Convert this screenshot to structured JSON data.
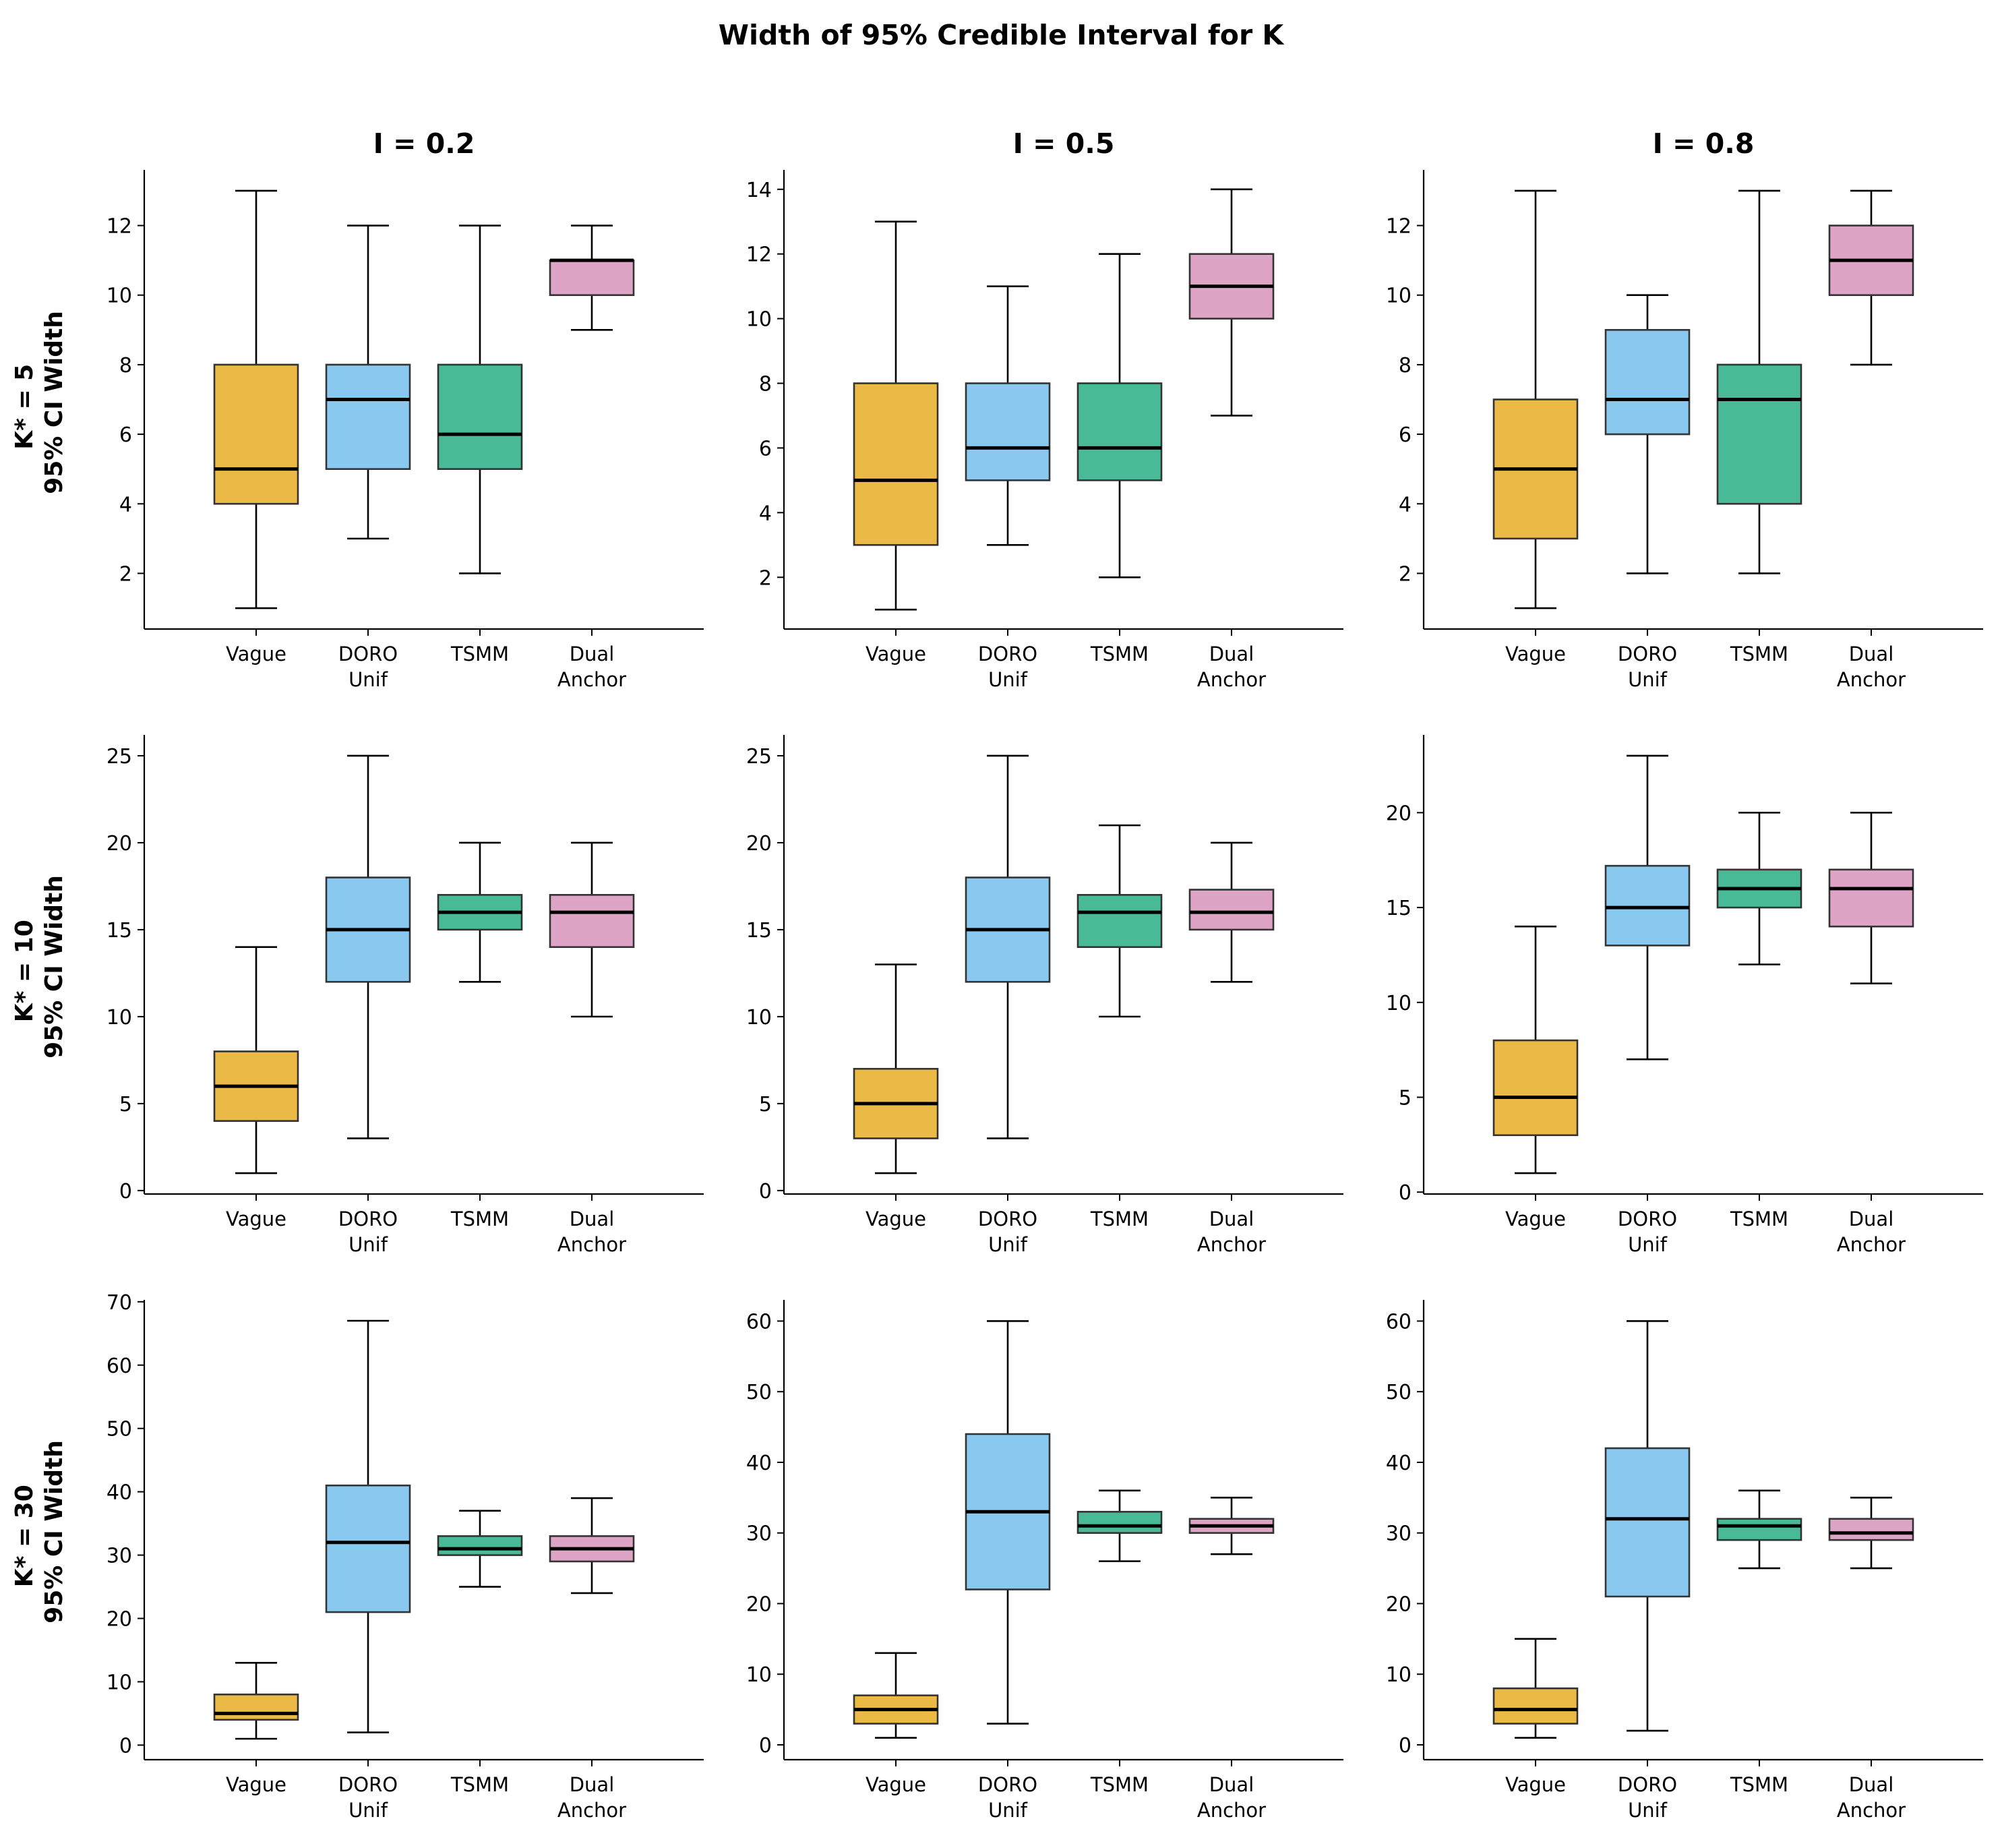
{
  "chart_data": {
    "type": "box",
    "title": "Width of 95% Credible Interval for K",
    "column_titles": [
      "I = 0.2",
      "I = 0.5",
      "I = 0.8"
    ],
    "row_labels": [
      {
        "line1": "K* = 5",
        "line2": "95% CI Width"
      },
      {
        "line1": "K* = 10",
        "line2": "95% CI Width"
      },
      {
        "line1": "K* = 30",
        "line2": "95% CI Width"
      }
    ],
    "categories": [
      {
        "line1": "Vague",
        "line2": ""
      },
      {
        "line1": "DORO",
        "line2": "Unif"
      },
      {
        "line1": "TSMM",
        "line2": ""
      },
      {
        "line1": "Dual",
        "line2": "Anchor"
      }
    ],
    "colors": [
      "#E6A817",
      "#6CBAEB",
      "#1BA97E",
      "#D48DB6"
    ],
    "panels": [
      [
        {
          "ylim": [
            0.4,
            13.6
          ],
          "yticks": [
            2,
            4,
            6,
            8,
            10,
            12
          ],
          "tick_labels": [
            "2",
            "4",
            "6",
            "8",
            "10",
            "12"
          ],
          "boxes": [
            {
              "whislo": 1,
              "q1": 4,
              "med": 5,
              "q3": 8,
              "whishi": 13
            },
            {
              "whislo": 3,
              "q1": 5,
              "med": 7,
              "q3": 8,
              "whishi": 12
            },
            {
              "whislo": 2,
              "q1": 5,
              "med": 6,
              "q3": 8,
              "whishi": 12
            },
            {
              "whislo": 9,
              "q1": 10,
              "med": 11,
              "q3": 11,
              "whishi": 12
            }
          ]
        },
        {
          "ylim": [
            0.4,
            14.6
          ],
          "yticks": [
            2,
            4,
            6,
            8,
            10,
            12,
            14
          ],
          "tick_labels": [
            "2",
            "4",
            "6",
            "8",
            "10",
            "12",
            "14"
          ],
          "boxes": [
            {
              "whislo": 1,
              "q1": 3,
              "med": 5,
              "q3": 8,
              "whishi": 13
            },
            {
              "whislo": 3,
              "q1": 5,
              "med": 6,
              "q3": 8,
              "whishi": 11
            },
            {
              "whislo": 2,
              "q1": 5,
              "med": 6,
              "q3": 8,
              "whishi": 12
            },
            {
              "whislo": 7,
              "q1": 10,
              "med": 11,
              "q3": 12,
              "whishi": 14
            }
          ]
        },
        {
          "ylim": [
            0.4,
            13.6
          ],
          "yticks": [
            2,
            4,
            6,
            8,
            10,
            12
          ],
          "tick_labels": [
            "2",
            "4",
            "6",
            "8",
            "10",
            "12"
          ],
          "boxes": [
            {
              "whislo": 1,
              "q1": 3,
              "med": 5,
              "q3": 7,
              "whishi": 13
            },
            {
              "whislo": 2,
              "q1": 6,
              "med": 7,
              "q3": 9,
              "whishi": 10
            },
            {
              "whislo": 2,
              "q1": 4,
              "med": 7,
              "q3": 8,
              "whishi": 13
            },
            {
              "whislo": 8,
              "q1": 10,
              "med": 11,
              "q3": 12,
              "whishi": 13
            }
          ]
        }
      ],
      [
        {
          "ylim": [
            -0.2,
            26.2
          ],
          "yticks": [
            0,
            5,
            10,
            15,
            20,
            25
          ],
          "tick_labels": [
            "0",
            "5",
            "10",
            "15",
            "20",
            "25"
          ],
          "boxes": [
            {
              "whislo": 1,
              "q1": 4,
              "med": 6,
              "q3": 8,
              "whishi": 14
            },
            {
              "whislo": 3,
              "q1": 12,
              "med": 15,
              "q3": 18,
              "whishi": 25
            },
            {
              "whislo": 12,
              "q1": 15,
              "med": 16,
              "q3": 17,
              "whishi": 20
            },
            {
              "whislo": 10,
              "q1": 14,
              "med": 16,
              "q3": 17,
              "whishi": 20
            }
          ]
        },
        {
          "ylim": [
            -0.2,
            26.2
          ],
          "yticks": [
            0,
            5,
            10,
            15,
            20,
            25
          ],
          "tick_labels": [
            "0",
            "5",
            "10",
            "15",
            "20",
            "25"
          ],
          "boxes": [
            {
              "whislo": 1,
              "q1": 3,
              "med": 5,
              "q3": 7,
              "whishi": 13
            },
            {
              "whislo": 3,
              "q1": 12,
              "med": 15,
              "q3": 18,
              "whishi": 25
            },
            {
              "whislo": 10,
              "q1": 14,
              "med": 16,
              "q3": 17,
              "whishi": 21
            },
            {
              "whislo": 12,
              "q1": 15,
              "med": 16,
              "q3": 17.3,
              "whishi": 20
            }
          ]
        },
        {
          "ylim": [
            -0.1,
            24.1
          ],
          "yticks": [
            0,
            5,
            10,
            15,
            20
          ],
          "tick_labels": [
            "0",
            "5",
            "10",
            "15",
            "20"
          ],
          "boxes": [
            {
              "whislo": 1,
              "q1": 3,
              "med": 5,
              "q3": 8,
              "whishi": 14
            },
            {
              "whislo": 7,
              "q1": 13,
              "med": 15,
              "q3": 17.2,
              "whishi": 23
            },
            {
              "whislo": 12,
              "q1": 15,
              "med": 16,
              "q3": 17,
              "whishi": 20
            },
            {
              "whislo": 11,
              "q1": 14,
              "med": 16,
              "q3": 17,
              "whishi": 20
            }
          ]
        }
      ],
      [
        {
          "ylim": [
            -2.3,
            70.3
          ],
          "yticks": [
            0,
            10,
            20,
            30,
            40,
            50,
            60,
            70
          ],
          "tick_labels": [
            "0",
            "10",
            "20",
            "30",
            "40",
            "50",
            "60",
            "70"
          ],
          "boxes": [
            {
              "whislo": 1,
              "q1": 4,
              "med": 5,
              "q3": 8,
              "whishi": 13
            },
            {
              "whislo": 2,
              "q1": 21,
              "med": 32,
              "q3": 41,
              "whishi": 67
            },
            {
              "whislo": 25,
              "q1": 30,
              "med": 31,
              "q3": 33,
              "whishi": 37
            },
            {
              "whislo": 24,
              "q1": 29,
              "med": 31,
              "q3": 33,
              "whishi": 39
            }
          ]
        },
        {
          "ylim": [
            -2.1,
            63.0
          ],
          "yticks": [
            0,
            10,
            20,
            30,
            40,
            50,
            60
          ],
          "tick_labels": [
            "0",
            "10",
            "20",
            "30",
            "40",
            "50",
            "60"
          ],
          "boxes": [
            {
              "whislo": 1,
              "q1": 3,
              "med": 5,
              "q3": 7,
              "whishi": 13
            },
            {
              "whislo": 3,
              "q1": 22,
              "med": 33,
              "q3": 44,
              "whishi": 60
            },
            {
              "whislo": 26,
              "q1": 30,
              "med": 31,
              "q3": 33,
              "whishi": 36
            },
            {
              "whislo": 27,
              "q1": 30,
              "med": 31,
              "q3": 32,
              "whishi": 35
            }
          ]
        },
        {
          "ylim": [
            -2.1,
            63.0
          ],
          "yticks": [
            0,
            10,
            20,
            30,
            40,
            50,
            60
          ],
          "tick_labels": [
            "0",
            "10",
            "20",
            "30",
            "40",
            "50",
            "60"
          ],
          "boxes": [
            {
              "whislo": 1,
              "q1": 3,
              "med": 5,
              "q3": 8,
              "whishi": 15
            },
            {
              "whislo": 2,
              "q1": 21,
              "med": 32,
              "q3": 42,
              "whishi": 60
            },
            {
              "whislo": 25,
              "q1": 29,
              "med": 31,
              "q3": 32,
              "whishi": 36
            },
            {
              "whislo": 25,
              "q1": 29,
              "med": 30,
              "q3": 32,
              "whishi": 35
            }
          ]
        }
      ]
    ]
  }
}
